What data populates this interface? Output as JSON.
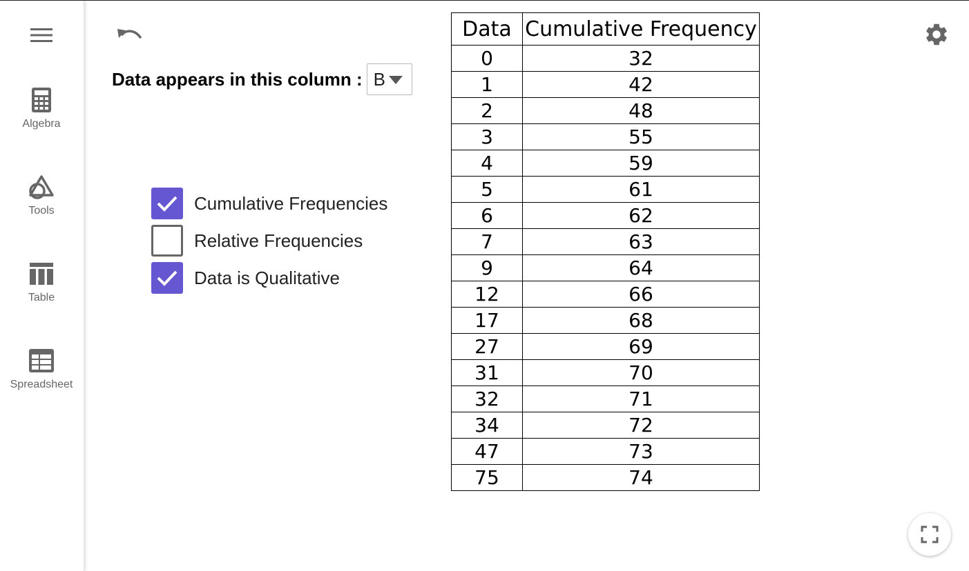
{
  "sidebar": {
    "menu_icon": "hamburger-menu-icon",
    "items": [
      {
        "label": "Algebra",
        "icon": "calculator-icon"
      },
      {
        "label": "Tools",
        "icon": "shapes-icon"
      },
      {
        "label": "Table",
        "icon": "table-icon"
      },
      {
        "label": "Spreadsheet",
        "icon": "spreadsheet-icon"
      }
    ]
  },
  "toolbar": {
    "undo_icon": "undo-icon",
    "settings_icon": "gear-icon",
    "fullscreen_icon": "fullscreen-icon"
  },
  "column_selector": {
    "label": "Data appears in this column :",
    "selected": "B"
  },
  "options": [
    {
      "label": "Cumulative Frequencies",
      "checked": true
    },
    {
      "label": "Relative Frequencies",
      "checked": false
    },
    {
      "label": "Data is Qualitative",
      "checked": true
    }
  ],
  "table": {
    "headers": [
      "Data",
      "Cumulative Frequency"
    ],
    "rows": [
      [
        "0",
        "32"
      ],
      [
        "1",
        "42"
      ],
      [
        "2",
        "48"
      ],
      [
        "3",
        "55"
      ],
      [
        "4",
        "59"
      ],
      [
        "5",
        "61"
      ],
      [
        "6",
        "62"
      ],
      [
        "7",
        "63"
      ],
      [
        "9",
        "64"
      ],
      [
        "12",
        "66"
      ],
      [
        "17",
        "68"
      ],
      [
        "27",
        "69"
      ],
      [
        "31",
        "70"
      ],
      [
        "32",
        "71"
      ],
      [
        "34",
        "72"
      ],
      [
        "47",
        "73"
      ],
      [
        "75",
        "74"
      ]
    ]
  },
  "colors": {
    "accent": "#6557d2",
    "icon_gray": "#666666",
    "label_gray": "#666666"
  }
}
